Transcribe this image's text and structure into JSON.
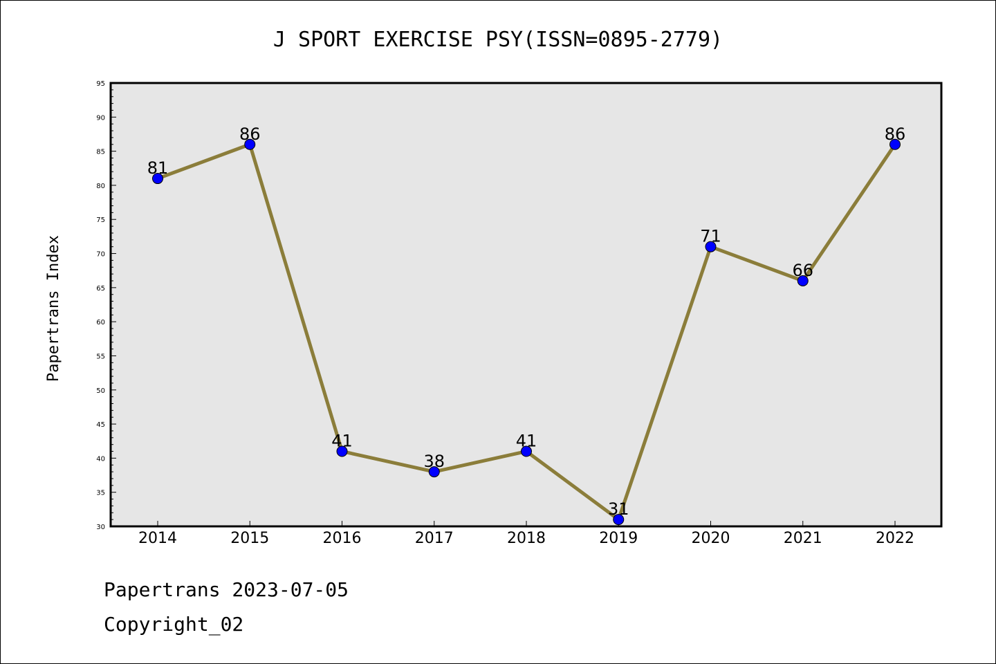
{
  "chart_data": {
    "type": "line",
    "title": "J SPORT EXERCISE PSY(ISSN=0895-2779)",
    "xlabel": "",
    "ylabel": "Papertrans Index",
    "categories": [
      "2014",
      "2015",
      "2016",
      "2017",
      "2018",
      "2019",
      "2020",
      "2021",
      "2022"
    ],
    "values": [
      81,
      86,
      41,
      38,
      41,
      31,
      71,
      66,
      86
    ],
    "ylim": [
      30,
      95
    ],
    "yticks": [
      30,
      35,
      40,
      45,
      50,
      55,
      60,
      65,
      70,
      75,
      80,
      85,
      90,
      95
    ],
    "data_labels": true,
    "grid": false,
    "colors": {
      "line": "#8b7d3a",
      "marker": "#0000ff",
      "plot_background": "#e6e6e6"
    }
  },
  "footer": {
    "line1": "Papertrans 2023-07-05",
    "line2": "Copyright_02"
  }
}
